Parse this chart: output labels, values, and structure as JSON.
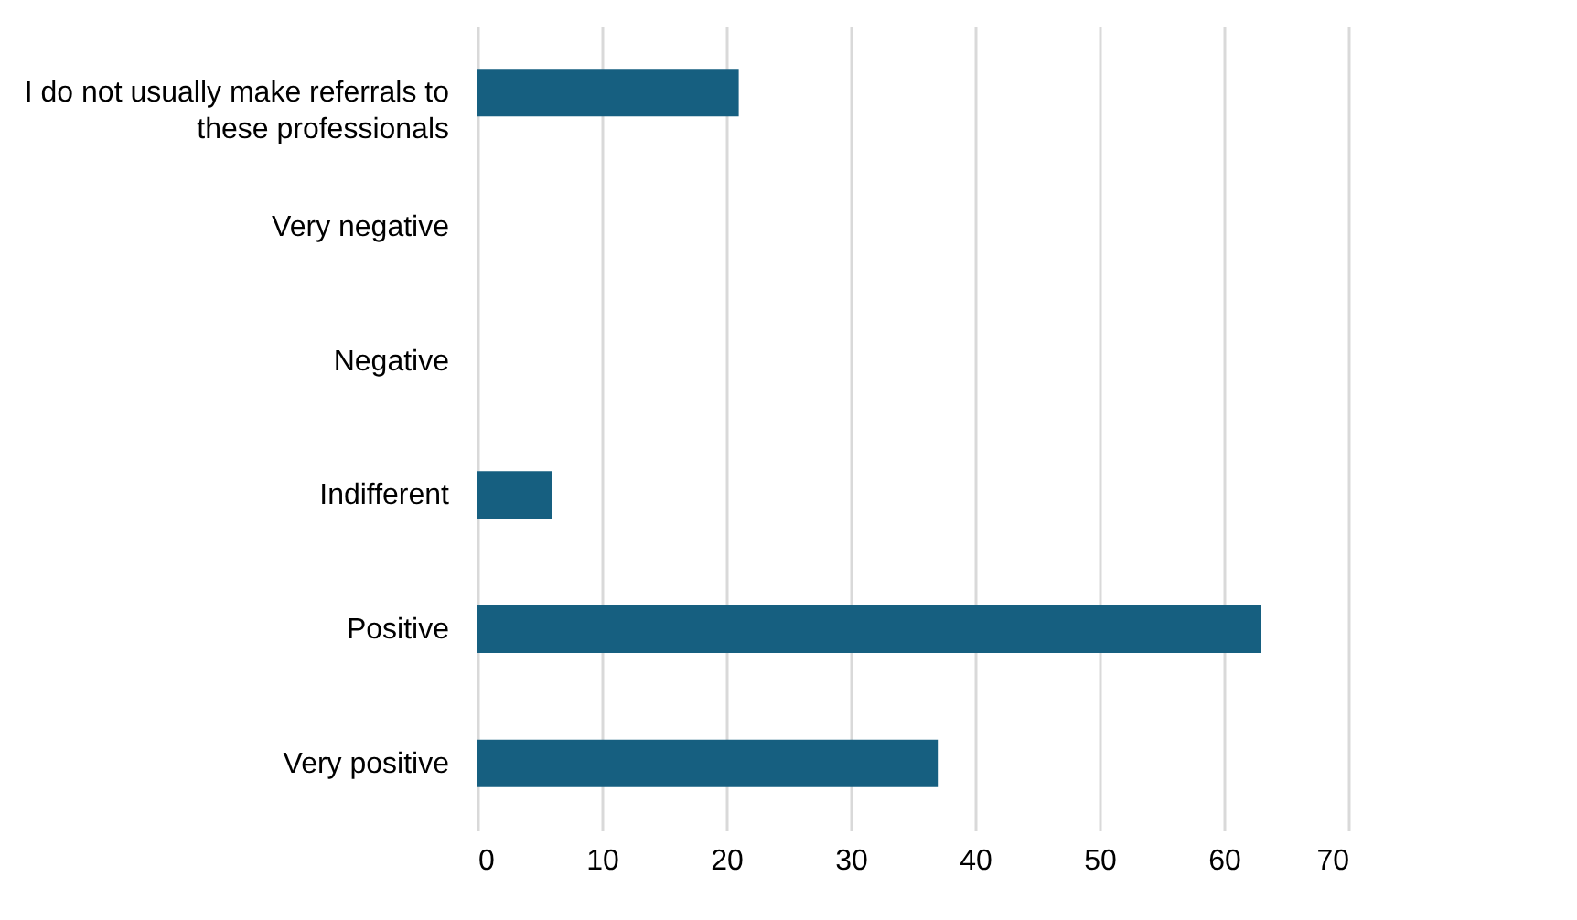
{
  "chart_data": {
    "type": "bar",
    "orientation": "horizontal",
    "categories": [
      "I do not usually make referrals to these professionals",
      "Very negative",
      "Negative",
      "Indifferent",
      "Positive",
      "Very positive"
    ],
    "values": [
      21,
      0,
      0,
      6,
      63,
      37
    ],
    "color": "#165f80",
    "xlim": [
      0,
      70
    ],
    "xticks": [
      0,
      10,
      20,
      30,
      40,
      50,
      60,
      70
    ],
    "grid": "x"
  }
}
